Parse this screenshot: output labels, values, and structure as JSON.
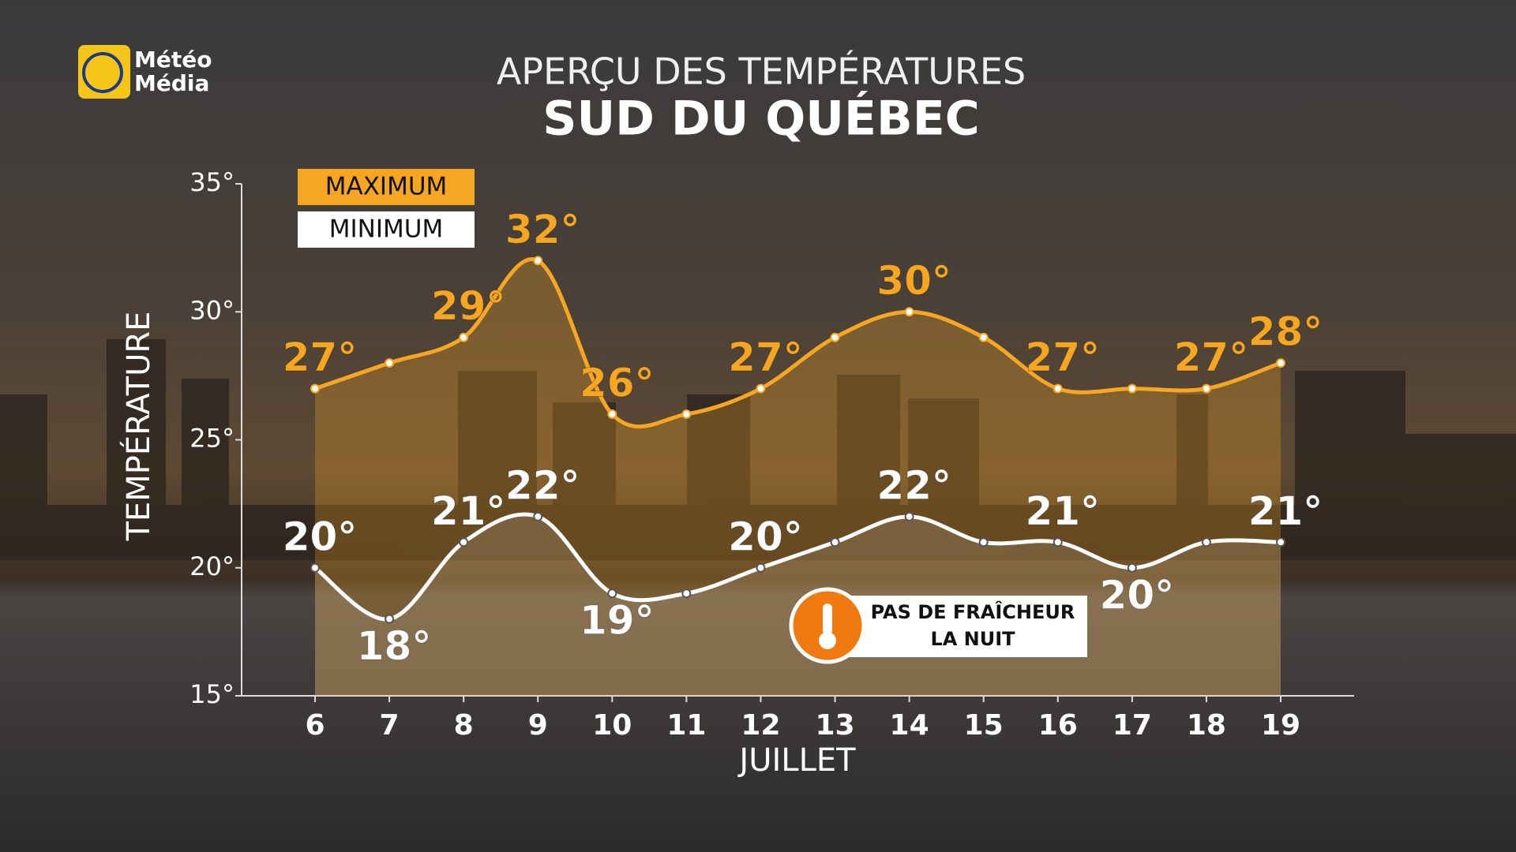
{
  "logo": {
    "lines": [
      "Météo",
      "Média"
    ]
  },
  "chart_data": {
    "type": "line",
    "title": "APERÇU DES TEMPÉRATURES",
    "subtitle": "SUD DU QUÉBEC",
    "x_label": "JUILLET",
    "y_label": "TEMPÉRATURE",
    "categories": [
      "6",
      "7",
      "8",
      "9",
      "10",
      "11",
      "12",
      "13",
      "14",
      "15",
      "16",
      "17",
      "18",
      "19"
    ],
    "series": [
      {
        "name": "MAXIMUM",
        "color": "#f5a623",
        "values": [
          27,
          28,
          29,
          32,
          26,
          26,
          27,
          29,
          30,
          29,
          27,
          27,
          27,
          28
        ],
        "value_labels": [
          "27°",
          null,
          "29°",
          "32°",
          "26°",
          null,
          "27°",
          null,
          "30°",
          null,
          "27°",
          null,
          "27°",
          "28°"
        ]
      },
      {
        "name": "MINIMUM",
        "color": "#ffffff",
        "values": [
          20,
          18,
          21,
          22,
          19,
          19,
          20,
          21,
          22,
          21,
          21,
          20,
          21,
          21
        ],
        "value_labels": [
          "20°",
          "18°",
          "21°",
          "22°",
          "19°",
          null,
          "20°",
          null,
          "22°",
          null,
          "21°",
          "20°",
          null,
          "21°"
        ]
      }
    ],
    "ylim": [
      15,
      35
    ],
    "yticks": [
      {
        "value": 15,
        "label": "15°"
      },
      {
        "value": 20,
        "label": "20°"
      },
      {
        "value": 25,
        "label": "25°"
      },
      {
        "value": 30,
        "label": "30°"
      },
      {
        "value": 35,
        "label": "35°"
      }
    ],
    "annotation": [
      "PAS DE FRAÎCHEUR",
      "LA NUIT"
    ]
  }
}
